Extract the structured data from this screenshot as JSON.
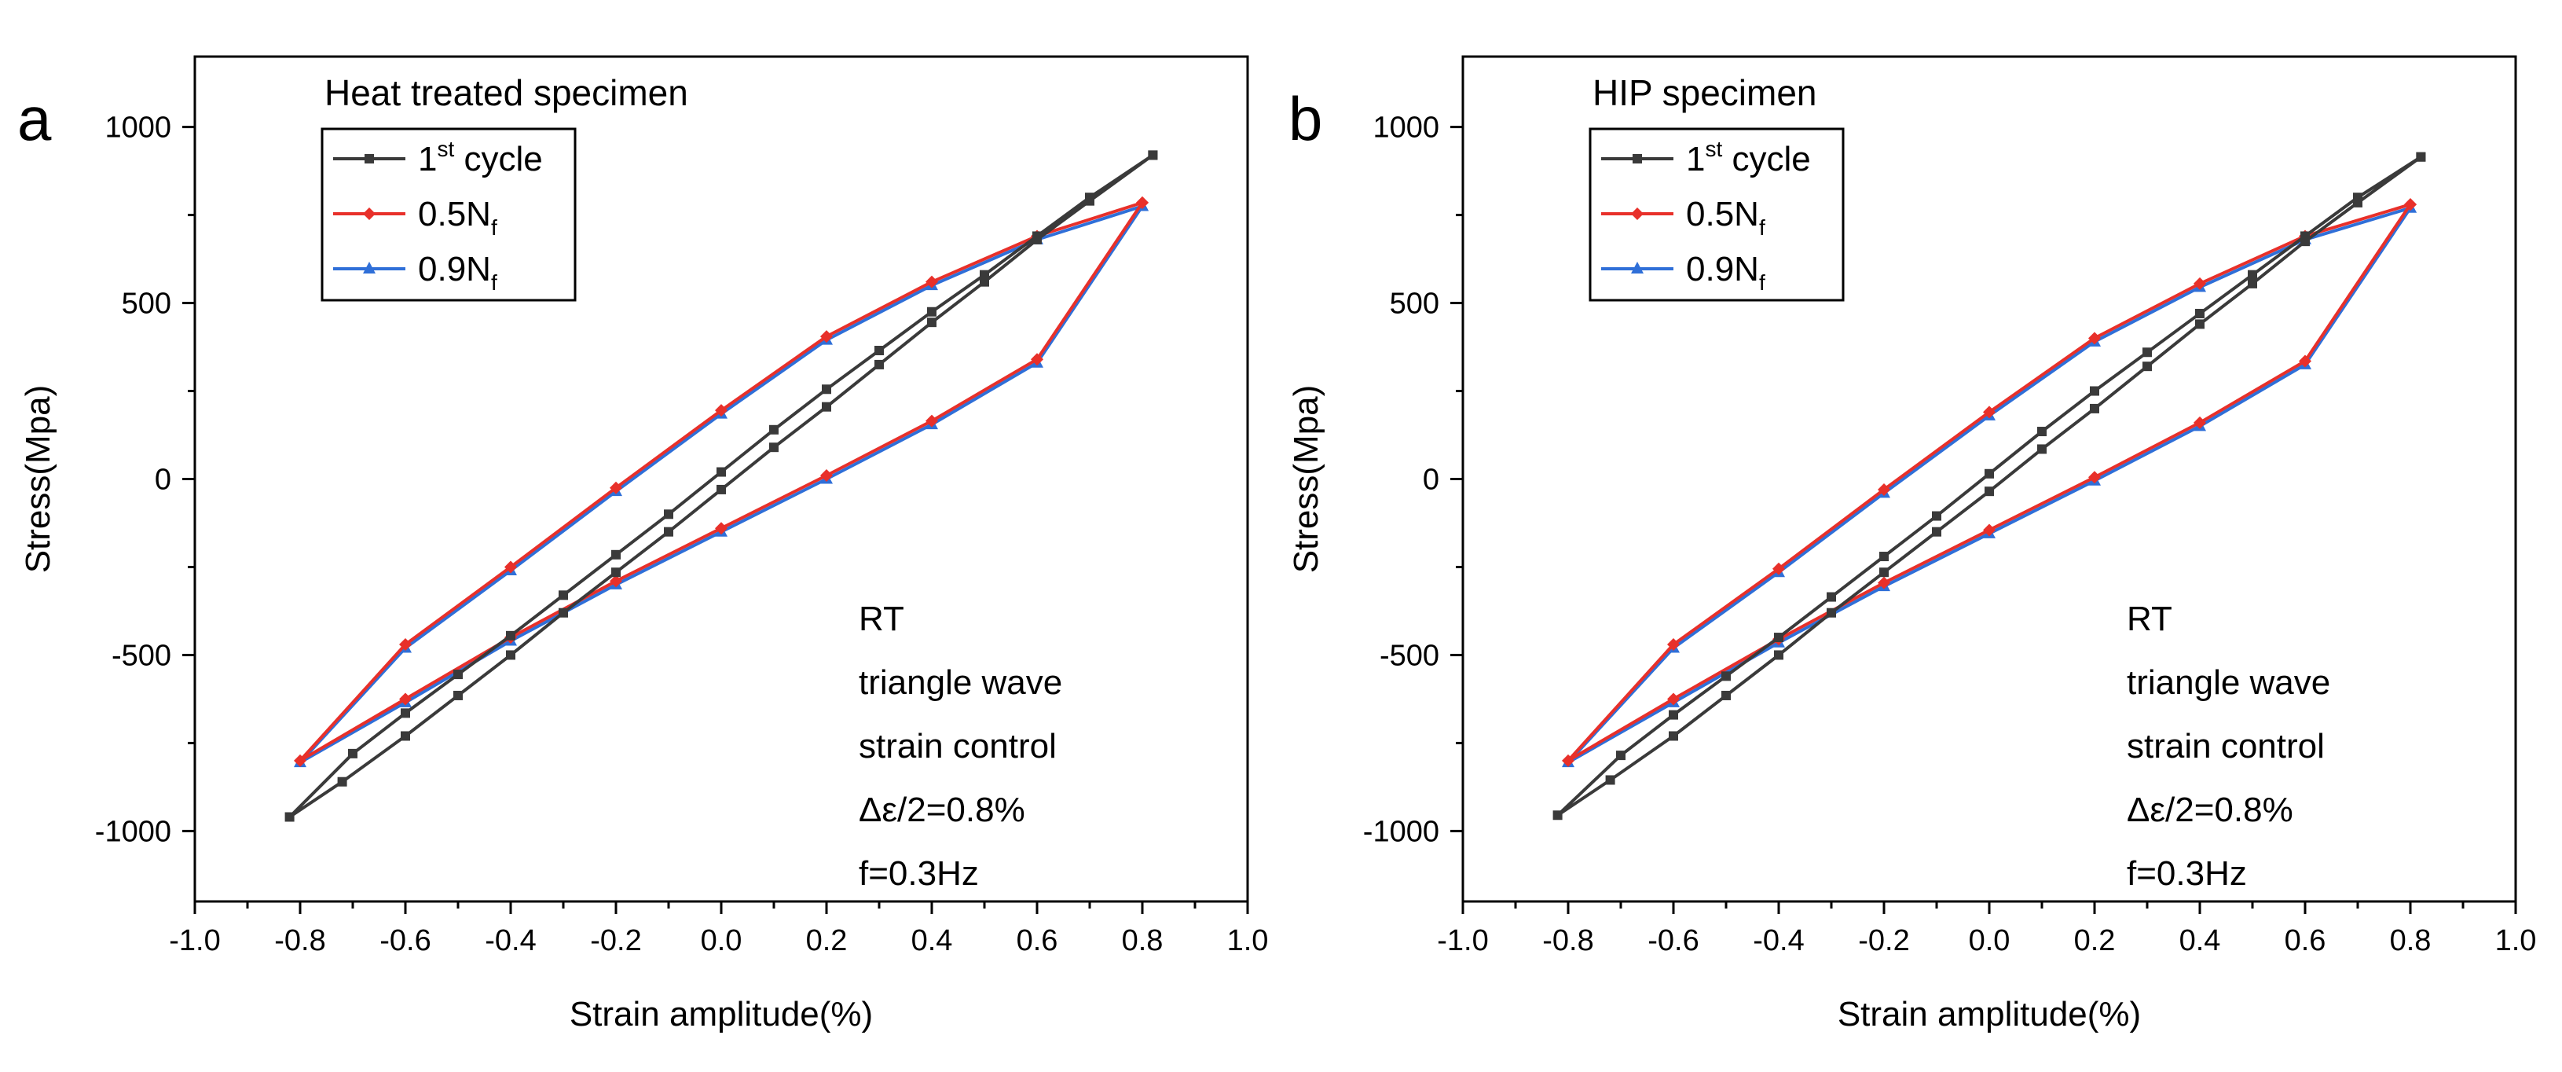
{
  "figure": {
    "panel_count": 2
  },
  "chart_data": [
    {
      "type": "line",
      "panel_label": "a",
      "title": "Heat treated specimen",
      "xlabel": "Strain amplitude(%)",
      "ylabel": "Stress(Mpa)",
      "xlim": [
        -1.0,
        1.0
      ],
      "ylim": [
        -1200,
        1200
      ],
      "x_ticks": [
        -1.0,
        -0.8,
        -0.6,
        -0.4,
        -0.2,
        0.0,
        0.2,
        0.4,
        0.6,
        0.8,
        1.0
      ],
      "x_tick_labels": [
        "-1.0",
        "-0.8",
        "-0.6",
        "-0.4",
        "-0.2",
        "0.0",
        "0.2",
        "0.4",
        "0.6",
        "0.8",
        "1.0"
      ],
      "y_ticks": [
        -1000,
        -500,
        0,
        500,
        1000
      ],
      "y_tick_labels": [
        "-1000",
        "-500",
        "0",
        "500",
        "1000"
      ],
      "legend_position": "top-left",
      "series": [
        {
          "name": "1st cycle",
          "name_base": "1",
          "name_sup": "st",
          "name_after": " cycle",
          "name_sub": "",
          "color": "#3a3a3a",
          "marker": "square",
          "x": [
            0.82,
            0.7,
            0.6,
            0.5,
            0.4,
            0.3,
            0.2,
            0.1,
            0.0,
            -0.1,
            -0.2,
            -0.3,
            -0.4,
            -0.5,
            -0.6,
            -0.7,
            -0.82,
            -0.72,
            -0.6,
            -0.5,
            -0.4,
            -0.3,
            -0.2,
            -0.1,
            0.0,
            0.1,
            0.2,
            0.3,
            0.4,
            0.5,
            0.6,
            0.7,
            0.82
          ],
          "y": [
            920,
            800,
            690,
            580,
            475,
            365,
            255,
            140,
            20,
            -100,
            -215,
            -330,
            -445,
            -555,
            -665,
            -780,
            -960,
            -860,
            -730,
            -615,
            -500,
            -380,
            -265,
            -150,
            -30,
            90,
            205,
            325,
            445,
            560,
            680,
            790,
            920
          ]
        },
        {
          "name": "0.5Nf",
          "name_base": "0.5N",
          "name_sup": "",
          "name_after": "",
          "name_sub": "f",
          "color": "#e8302a",
          "marker": "diamond",
          "x": [
            0.8,
            0.6,
            0.4,
            0.2,
            0.0,
            -0.2,
            -0.4,
            -0.6,
            -0.8,
            -0.6,
            -0.4,
            -0.2,
            0.0,
            0.2,
            0.4,
            0.6,
            0.8
          ],
          "y": [
            785,
            690,
            560,
            405,
            195,
            -25,
            -250,
            -470,
            -800,
            -625,
            -450,
            -290,
            -140,
            10,
            165,
            340,
            785
          ]
        },
        {
          "name": "0.9Nf",
          "name_base": "0.9N",
          "name_sup": "",
          "name_after": "",
          "name_sub": "f",
          "color": "#2f6fd8",
          "marker": "triangle",
          "x": [
            0.8,
            0.6,
            0.4,
            0.2,
            0.0,
            -0.2,
            -0.4,
            -0.6,
            -0.8,
            -0.6,
            -0.4,
            -0.2,
            0.0,
            0.2,
            0.4,
            0.6,
            0.8
          ],
          "y": [
            775,
            680,
            550,
            395,
            185,
            -35,
            -260,
            -480,
            -805,
            -635,
            -460,
            -300,
            -150,
            0,
            155,
            330,
            775
          ]
        }
      ],
      "annotations": [
        "RT",
        "triangle wave",
        "strain control",
        "Δε/2=0.8%",
        "f=0.3Hz"
      ]
    },
    {
      "type": "line",
      "panel_label": "b",
      "title": "HIP specimen",
      "xlabel": "Strain amplitude(%)",
      "ylabel": "Stress(Mpa)",
      "xlim": [
        -1.0,
        1.0
      ],
      "ylim": [
        -1200,
        1200
      ],
      "x_ticks": [
        -1.0,
        -0.8,
        -0.6,
        -0.4,
        -0.2,
        0.0,
        0.2,
        0.4,
        0.6,
        0.8,
        1.0
      ],
      "x_tick_labels": [
        "-1.0",
        "-0.8",
        "-0.6",
        "-0.4",
        "-0.2",
        "0.0",
        "0.2",
        "0.4",
        "0.6",
        "0.8",
        "1.0"
      ],
      "y_ticks": [
        -1000,
        -500,
        0,
        500,
        1000
      ],
      "y_tick_labels": [
        "-1000",
        "-500",
        "0",
        "500",
        "1000"
      ],
      "legend_position": "top-left",
      "series": [
        {
          "name": "1st cycle",
          "name_base": "1",
          "name_sup": "st",
          "name_after": " cycle",
          "name_sub": "",
          "color": "#3a3a3a",
          "marker": "square",
          "x": [
            0.82,
            0.7,
            0.6,
            0.5,
            0.4,
            0.3,
            0.2,
            0.1,
            0.0,
            -0.1,
            -0.2,
            -0.3,
            -0.4,
            -0.5,
            -0.6,
            -0.7,
            -0.82,
            -0.72,
            -0.6,
            -0.5,
            -0.4,
            -0.3,
            -0.2,
            -0.1,
            0.0,
            0.1,
            0.2,
            0.3,
            0.4,
            0.5,
            0.6,
            0.7,
            0.82
          ],
          "y": [
            915,
            800,
            690,
            580,
            470,
            360,
            250,
            135,
            15,
            -105,
            -220,
            -335,
            -450,
            -560,
            -670,
            -785,
            -955,
            -855,
            -730,
            -615,
            -500,
            -380,
            -265,
            -150,
            -35,
            85,
            200,
            320,
            440,
            555,
            675,
            785,
            915
          ]
        },
        {
          "name": "0.5Nf",
          "name_base": "0.5N",
          "name_sup": "",
          "name_after": "",
          "name_sub": "f",
          "color": "#e8302a",
          "marker": "diamond",
          "x": [
            0.8,
            0.6,
            0.4,
            0.2,
            0.0,
            -0.2,
            -0.4,
            -0.6,
            -0.8,
            -0.6,
            -0.4,
            -0.2,
            0.0,
            0.2,
            0.4,
            0.6,
            0.8
          ],
          "y": [
            780,
            690,
            555,
            400,
            190,
            -30,
            -255,
            -470,
            -800,
            -625,
            -455,
            -295,
            -145,
            5,
            160,
            335,
            780
          ]
        },
        {
          "name": "0.9Nf",
          "name_base": "0.9N",
          "name_sup": "",
          "name_after": "",
          "name_sub": "f",
          "color": "#2f6fd8",
          "marker": "triangle",
          "x": [
            0.8,
            0.6,
            0.4,
            0.2,
            0.0,
            -0.2,
            -0.4,
            -0.6,
            -0.8,
            -0.6,
            -0.4,
            -0.2,
            0.0,
            0.2,
            0.4,
            0.6,
            0.8
          ],
          "y": [
            770,
            680,
            545,
            390,
            180,
            -40,
            -265,
            -480,
            -805,
            -635,
            -465,
            -305,
            -155,
            -5,
            150,
            325,
            770
          ]
        }
      ],
      "annotations": [
        "RT",
        "triangle wave",
        "strain control",
        "Δε/2=0.8%",
        "f=0.3Hz"
      ]
    }
  ]
}
